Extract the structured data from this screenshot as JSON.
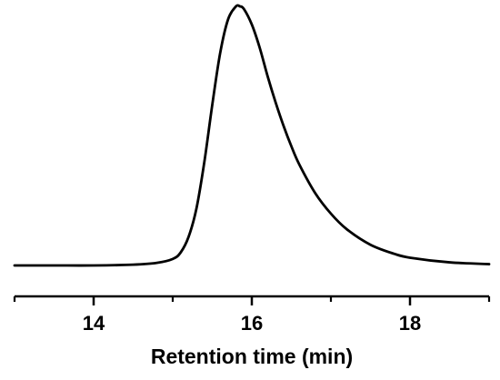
{
  "chart_data": {
    "type": "line",
    "title": "",
    "xlabel": "Retention time (min)",
    "ylabel": "",
    "xlim": [
      13,
      19
    ],
    "ylim": [
      0,
      1
    ],
    "x_ticks": [
      14,
      16,
      18
    ],
    "x_tick_labels": [
      "14",
      "16",
      "18"
    ],
    "x_minor_ticks": [
      13,
      15,
      17,
      19
    ],
    "grid": false,
    "legend": "none",
    "series": [
      {
        "color": "#000000",
        "x": [
          13.0,
          13.5,
          14.0,
          14.5,
          14.8,
          15.0,
          15.1,
          15.2,
          15.3,
          15.4,
          15.5,
          15.6,
          15.7,
          15.8,
          15.85,
          15.9,
          16.0,
          16.1,
          16.2,
          16.3,
          16.4,
          16.5,
          16.6,
          16.8,
          17.0,
          17.2,
          17.5,
          17.8,
          18.0,
          18.5,
          19.0
        ],
        "y": [
          0.0,
          0.0,
          0.0,
          0.003,
          0.01,
          0.025,
          0.05,
          0.11,
          0.22,
          0.4,
          0.62,
          0.82,
          0.95,
          1.0,
          1.0,
          0.99,
          0.93,
          0.84,
          0.73,
          0.63,
          0.54,
          0.46,
          0.39,
          0.28,
          0.2,
          0.14,
          0.08,
          0.045,
          0.03,
          0.012,
          0.005
        ]
      }
    ]
  }
}
